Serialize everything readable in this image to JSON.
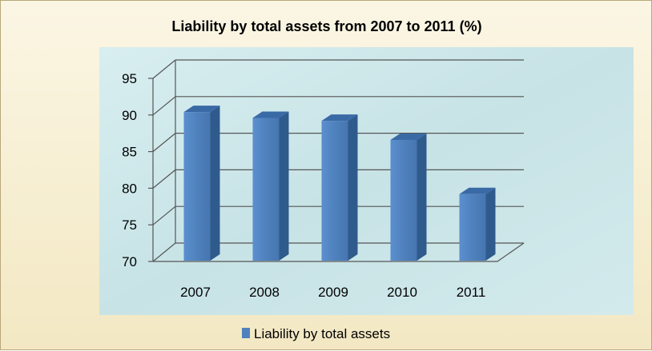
{
  "chart_data": {
    "type": "bar",
    "title": "Liability by total assets from 2007 to 2011 (%)",
    "categories": [
      "2007",
      "2008",
      "2009",
      "2010",
      "2011"
    ],
    "series": [
      {
        "name": "Liability by total assets",
        "values": [
          90.4,
          89.6,
          89.2,
          86.6,
          79.2
        ]
      }
    ],
    "yticks": [
      "70",
      "75",
      "80",
      "85",
      "90",
      "95"
    ],
    "ylim": [
      70,
      95
    ],
    "grid": true,
    "legend": "bottom",
    "style": "3d-column",
    "bar_color": "#4f81bd",
    "plot_background": "#cde6e8"
  }
}
